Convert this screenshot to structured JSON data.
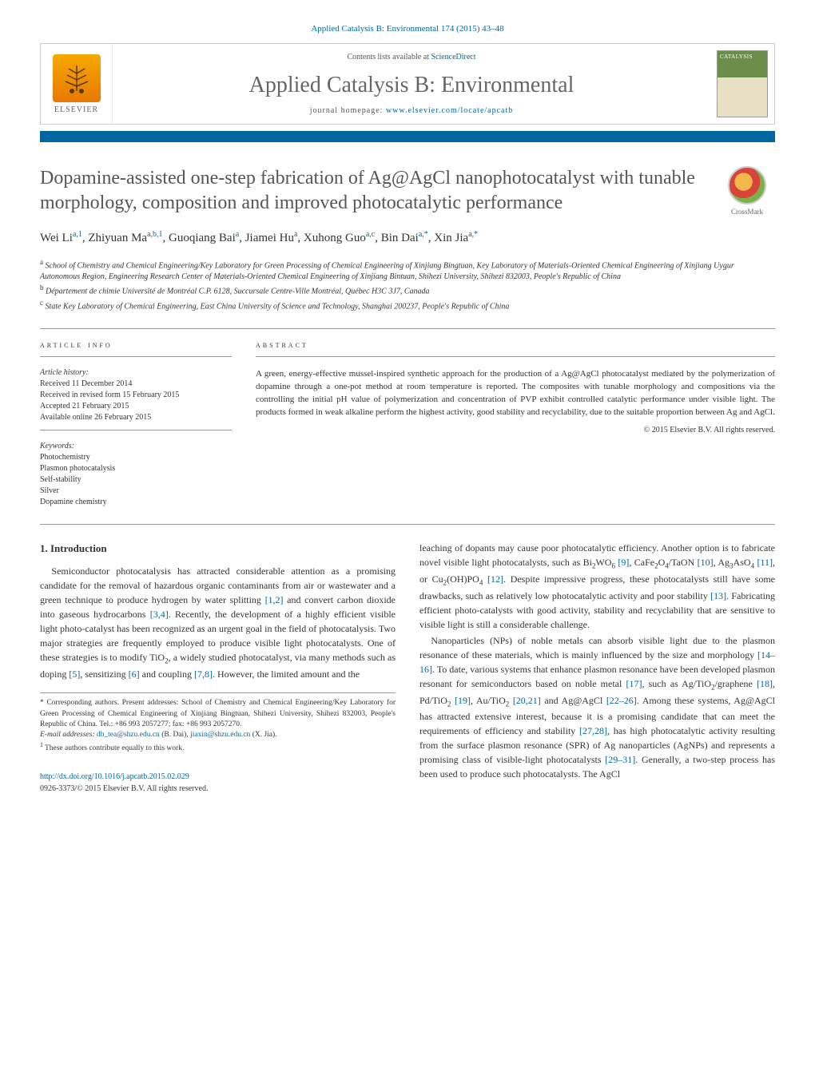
{
  "running_header": "Applied Catalysis B: Environmental 174 (2015) 43–48",
  "header": {
    "contents_prefix": "Contents lists available at ",
    "contents_link": "ScienceDirect",
    "journal_name": "Applied Catalysis B: Environmental",
    "homepage_prefix": "journal homepage: ",
    "homepage_link": "www.elsevier.com/locate/apcatb",
    "elsevier_label": "ELSEVIER",
    "cover_title": "CATALYSIS"
  },
  "crossmark_label": "CrossMark",
  "title": "Dopamine-assisted one-step fabrication of Ag@AgCl nanophotocatalyst with tunable morphology, composition and improved photocatalytic performance",
  "authors_html": "Wei Li<sup>a,1</sup>, Zhiyuan Ma<sup>a,b,1</sup>, Guoqiang Bai<sup>a</sup>, Jiamei Hu<sup>a</sup>, Xuhong Guo<sup>a,c</sup>, Bin Dai<sup>a,*</sup>, Xin Jia<sup>a,*</sup>",
  "affiliations": [
    {
      "sup": "a",
      "text": "School of Chemistry and Chemical Engineering/Key Laboratory for Green Processing of Chemical Engineering of Xinjiang Bingtuan, Key Laboratory of Materials-Oriented Chemical Engineering of Xinjiang Uygur Autonomous Region, Engineering Research Center of Materials-Oriented Chemical Engineering of Xinjiang Bintuan, Shihezi University, Shihezi 832003, People's Republic of China"
    },
    {
      "sup": "b",
      "text": "Département de chimie Université de Montréal C.P. 6128, Succursale Centre-Ville Montréal, Québec H3C 3J7, Canada"
    },
    {
      "sup": "c",
      "text": "State Key Laboratory of Chemical Engineering, East China University of Science and Technology, Shanghai 200237, People's Republic of China"
    }
  ],
  "article_info": {
    "label": "ARTICLE INFO",
    "history_label": "Article history:",
    "history": [
      "Received 11 December 2014",
      "Received in revised form 15 February 2015",
      "Accepted 21 February 2015",
      "Available online 26 February 2015"
    ],
    "keywords_label": "Keywords:",
    "keywords": [
      "Photochemistry",
      "Plasmon photocatalysis",
      "Self-stability",
      "Silver",
      "Dopamine chemistry"
    ]
  },
  "abstract": {
    "label": "ABSTRACT",
    "text": "A green, energy-effective mussel-inspired synthetic approach for the production of a Ag@AgCl photocatalyst mediated by the polymerization of dopamine through a one-pot method at room temperature is reported. The composites with tunable morphology and compositions via the controlling the initial pH value of polymerization and concentration of PVP exhibit controlled catalytic performance under visible light. The products formed in weak alkaline perform the highest activity, good stability and recyclability, due to the suitable proportion between Ag and AgCl.",
    "copyright": "© 2015 Elsevier B.V. All rights reserved."
  },
  "body": {
    "section_heading": "1. Introduction",
    "para1_pre": "Semiconductor photocatalysis has attracted considerable attention as a promising candidate for the removal of hazardous organic contaminants from air or wastewater and a green technique to produce hydrogen by water splitting ",
    "c12": "[1,2]",
    "para1_mid1": " and convert carbon dioxide into gaseous hydrocarbons ",
    "c34": "[3,4]",
    "para1_mid2": ". Recently, the development of a highly efficient visible light photo-catalyst has been recognized as an urgent goal in the field of photocatalysis. Two major strategies are frequently employed to produce visible light photocatalysts. One of these strategies is to modify TiO",
    "sub2a": "2",
    "para1_mid3": ", a widely studied photocatalyst, via many methods such as doping ",
    "c5": "[5]",
    "para1_mid4": ", sensitizing ",
    "c6": "[6]",
    "para1_mid5": " and coupling ",
    "c78": "[7,8]",
    "para1_end": ". However, the limited amount and the",
    "para2_pre": "leaching of dopants may cause poor photocatalytic efficiency. Another option is to fabricate novel visible light photocatalysts, such as Bi",
    "sub2b": "2",
    "para2_w": "WO",
    "sub6": "6",
    "sp1": " ",
    "c9": "[9]",
    "para2_mid1": ", CaFe",
    "sub2c": "2",
    "para2_o": "O",
    "sub4a": "4",
    "para2_taon": "/TaON ",
    "c10": "[10]",
    "para2_mid2": ", Ag",
    "sub3": "3",
    "para2_aso": "AsO",
    "sub4b": "4",
    "sp2": " ",
    "c11": "[11]",
    "para2_mid3": ", or Cu",
    "sub2d": "2",
    "para2_ohpo": "(OH)PO",
    "sub4c": "4",
    "sp3": " ",
    "c12b": "[12]",
    "para2_mid4": ". Despite impressive progress, these photocatalysts still have some drawbacks, such as relatively low photocatalytic activity and poor stability ",
    "c13": "[13]",
    "para2_end": ". Fabricating efficient photo-catalysts with good activity, stability and recyclability that are sensitive to visible light is still a considerable challenge.",
    "para3_pre": "Nanoparticles (NPs) of noble metals can absorb visible light due to the plasmon resonance of these materials, which is mainly influenced by the size and morphology ",
    "c1416": "[14–16]",
    "para3_mid1": ". To date, various systems that enhance plasmon resonance have been developed plasmon resonant for semiconductors based on noble metal ",
    "c17": "[17]",
    "para3_mid2": ", such as Ag/TiO",
    "sub2e": "2",
    "para3_gr": "/graphene ",
    "c18": "[18]",
    "para3_mid3": ", Pd/TiO",
    "sub2f": "2",
    "sp4": " ",
    "c19": "[19]",
    "para3_mid4": ", Au/TiO",
    "sub2g": "2",
    "sp5": " ",
    "c2021": "[20,21]",
    "para3_mid5": " and Ag@AgCl ",
    "c2226": "[22–26]",
    "para3_mid6": ". Among these systems, Ag@AgCl has attracted extensive interest, because it is a promising candidate that can meet the requirements of efficiency and stability ",
    "c2728": "[27,28]",
    "para3_mid7": ", has high photocatalytic activity resulting from the surface plasmon resonance (SPR) of Ag nanoparticles (AgNPs) and represents a promising class of visible-light photocatalysts ",
    "c2931": "[29–31]",
    "para3_end": ". Generally, a two-step process has been used to produce such photocatalysts. The AgCl"
  },
  "footnotes": {
    "corr_label": "* ",
    "corr_text": "Corresponding authors. Present addresses: School of Chemistry and Chemical Engineering/Key Laboratory for Green Processing of Chemical Engineering of Xinjiang Bingtuan, Shihezi University, Shihezi 832003, People's Republic of China. Tel.: +86 993 2057277; fax: +86 993 2057270.",
    "email_label": "E-mail addresses: ",
    "email1": "db_tea@shzu.edu.cn",
    "email1_who": " (B. Dai), ",
    "email2": "jiaxin@shzu.edu.cn",
    "email2_who": " (X. Jia).",
    "equal_label": "1 ",
    "equal_text": "These authors contribute equally to this work."
  },
  "doi": {
    "url": "http://dx.doi.org/10.1016/j.apcatb.2015.02.029",
    "issn_line": "0926-3373/© 2015 Elsevier B.V. All rights reserved."
  },
  "colors": {
    "link": "#0066a1",
    "bar": "#0066a1",
    "title_gray": "#555555",
    "text": "#333333",
    "border": "#cccccc",
    "elsevier_orange": "#e87800"
  },
  "typography": {
    "body_pt": 12,
    "title_pt": 24,
    "journal_pt": 28,
    "small_pt": 10
  }
}
